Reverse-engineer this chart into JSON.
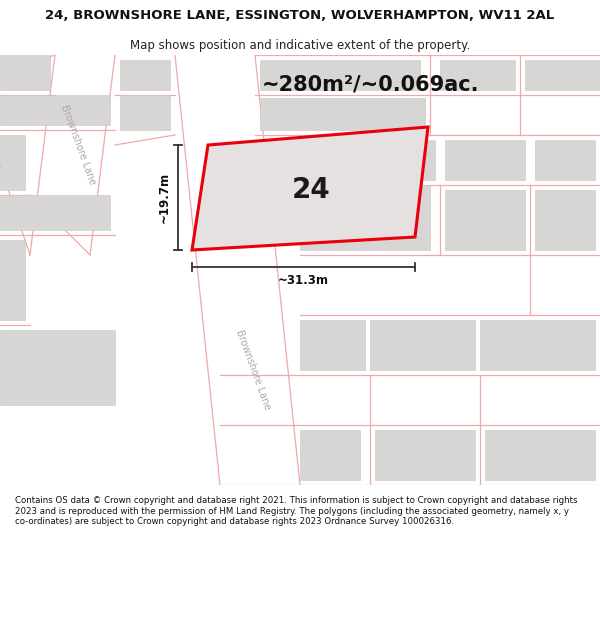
{
  "title": "24, BROWNSHORE LANE, ESSINGTON, WOLVERHAMPTON, WV11 2AL",
  "subtitle": "Map shows position and indicative extent of the property.",
  "area_text": "~280m²/~0.069ac.",
  "width_label": "~31.3m",
  "height_label": "~19.7m",
  "plot_number": "24",
  "footer": "Contains OS data © Crown copyright and database right 2021. This information is subject to Crown copyright and database rights 2023 and is reproduced with the permission of HM Land Registry. The polygons (including the associated geometry, namely x, y co-ordinates) are subject to Crown copyright and database rights 2023 Ordnance Survey 100026316.",
  "bg_map": "#f2efef",
  "road_fill": "#ffffff",
  "bldg_fill": "#d8d5d5",
  "bldg_edge": "#c8c4c4",
  "red_line": "#e8000a",
  "pink": "#f0a8a8",
  "dim_color": "#333333",
  "road_label_color": "#b0a8a8",
  "title_fs": 9.5,
  "subtitle_fs": 8.5,
  "area_fs": 15,
  "num_fs": 20,
  "footer_fs": 6.2,
  "dim_fs": 8.5
}
